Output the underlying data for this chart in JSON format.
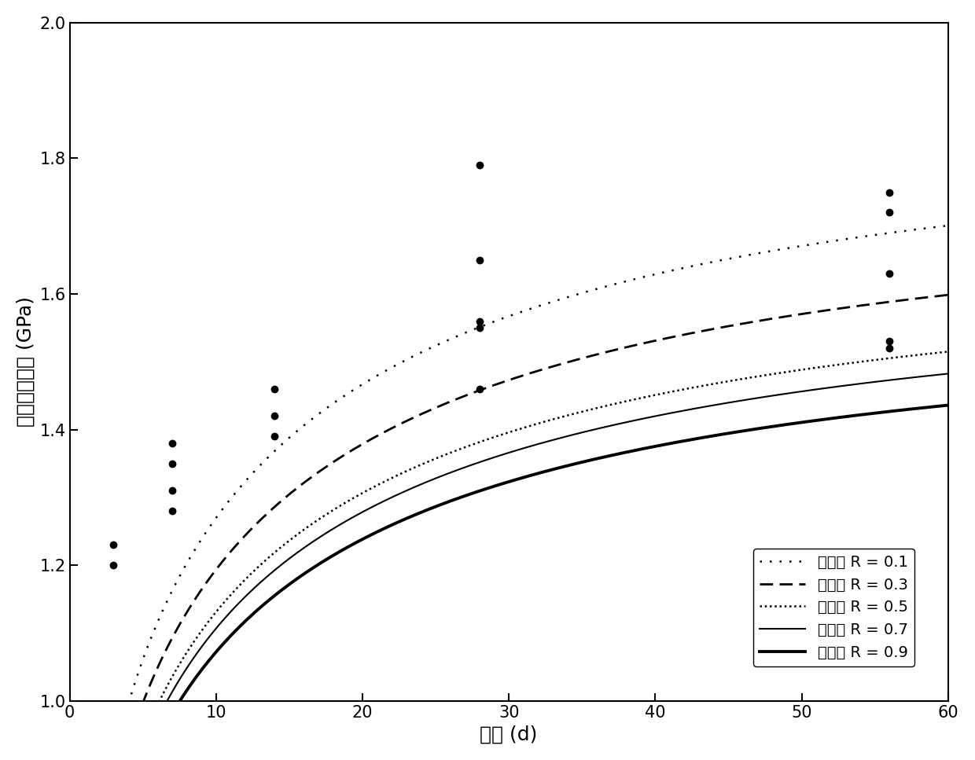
{
  "xlabel": "龄期 (d)",
  "ylabel": "砂浆弹性模量 (GPa)",
  "xlim": [
    0,
    60
  ],
  "ylim": [
    1.0,
    2.0
  ],
  "xticks": [
    0,
    10,
    20,
    30,
    40,
    50,
    60
  ],
  "yticks": [
    1.0,
    1.2,
    1.4,
    1.6,
    1.8,
    2.0
  ],
  "curve_params": [
    {
      "E_inf": 1.83,
      "k": 0.42,
      "n": 0.45,
      "label": "可靠度 R = 0.1",
      "ls_type": "loose_dot",
      "lw": 1.8
    },
    {
      "E_inf": 1.72,
      "k": 0.42,
      "n": 0.45,
      "label": "可靠度 R = 0.3",
      "ls_type": "dash",
      "lw": 2.0
    },
    {
      "E_inf": 1.63,
      "k": 0.42,
      "n": 0.45,
      "label": "可靠度 R = 0.5",
      "ls_type": "dense_dot",
      "lw": 1.8
    },
    {
      "E_inf": 1.595,
      "k": 0.42,
      "n": 0.45,
      "label": "可靠度 R = 0.7",
      "ls_type": "solid_thin",
      "lw": 1.5
    },
    {
      "E_inf": 1.545,
      "k": 0.42,
      "n": 0.45,
      "label": "可靠度 R = 0.9",
      "ls_type": "solid_thick",
      "lw": 2.8
    }
  ],
  "scatter_x": [
    3,
    3,
    7,
    7,
    7,
    7,
    14,
    14,
    14,
    28,
    28,
    28,
    28,
    28,
    56,
    56,
    56,
    56,
    56
  ],
  "scatter_y": [
    1.2,
    1.23,
    1.28,
    1.31,
    1.35,
    1.38,
    1.39,
    1.42,
    1.46,
    1.46,
    1.55,
    1.56,
    1.65,
    1.79,
    1.52,
    1.53,
    1.63,
    1.72,
    1.75
  ],
  "font_size_label": 18,
  "font_size_tick": 15,
  "font_size_legend": 14,
  "background_color": "#ffffff"
}
